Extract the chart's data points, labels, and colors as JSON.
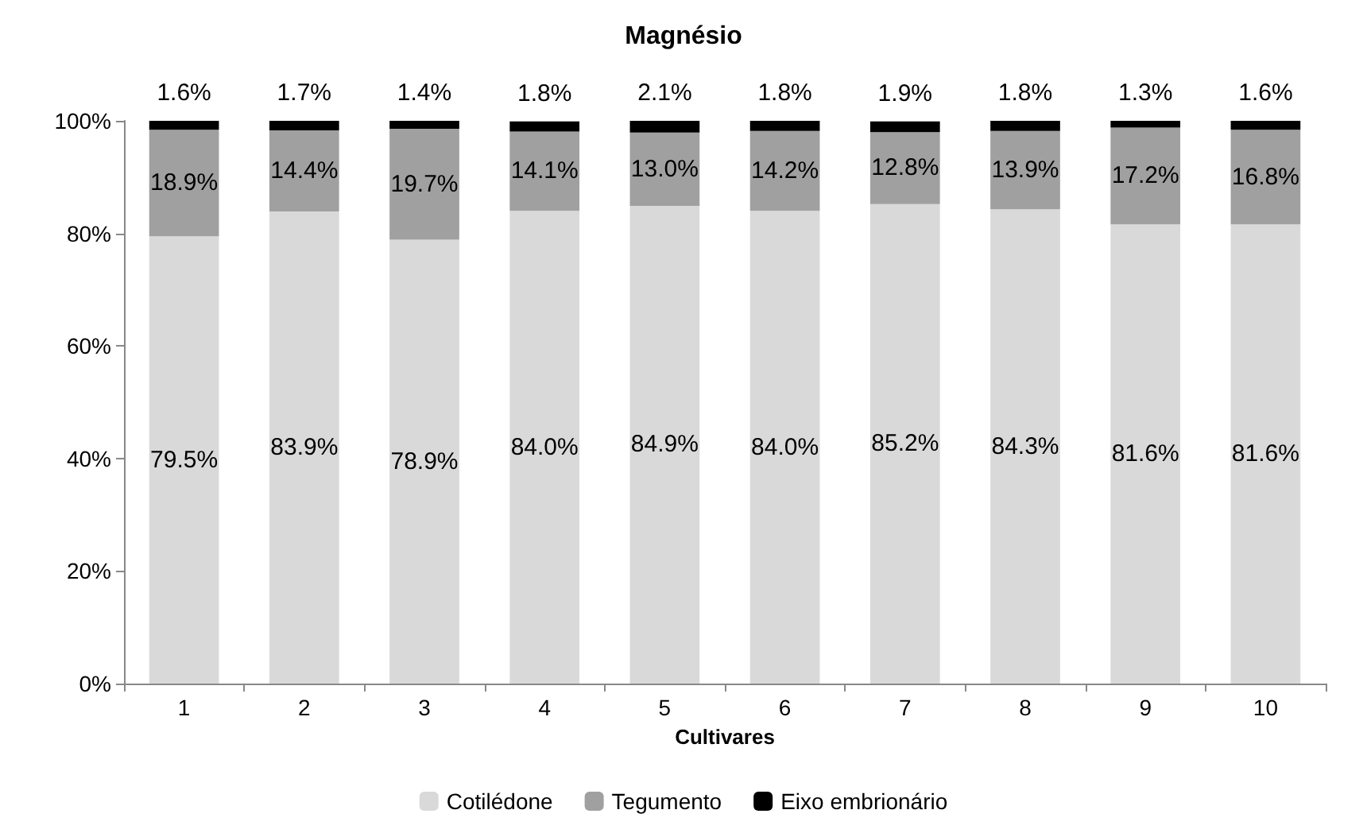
{
  "chart_data": {
    "type": "bar",
    "title": "Magnésio",
    "xlabel": "Cultivares",
    "stacked": true,
    "grid": false,
    "legend": "bottom",
    "categories": [
      "1",
      "2",
      "3",
      "4",
      "5",
      "6",
      "7",
      "8",
      "9",
      "10"
    ],
    "ylim": [
      0,
      100
    ],
    "yticks": [
      {
        "value": 0,
        "label": "0%"
      },
      {
        "value": 20,
        "label": "20%"
      },
      {
        "value": 40,
        "label": "40%"
      },
      {
        "value": 60,
        "label": "60%"
      },
      {
        "value": 80,
        "label": "80%"
      },
      {
        "value": 100,
        "label": "100%"
      }
    ],
    "series": [
      {
        "name": "Cotilédone",
        "color": "#d9d9d9",
        "values": [
          79.5,
          83.9,
          78.9,
          84.0,
          84.9,
          84.0,
          85.2,
          84.3,
          81.6,
          81.6
        ],
        "value_labels": [
          "79.5%",
          "83.9%",
          "78.9%",
          "84.0%",
          "84.9%",
          "84.0%",
          "85.2%",
          "84.3%",
          "81.6%",
          "81.6%"
        ]
      },
      {
        "name": "Tegumento",
        "color": "#a0a0a0",
        "values": [
          18.9,
          14.4,
          19.7,
          14.1,
          13.0,
          14.2,
          12.8,
          13.9,
          17.2,
          16.8
        ],
        "value_labels": [
          "18.9%",
          "14.4%",
          "19.7%",
          "14.1%",
          "13.0%",
          "14.2%",
          "12.8%",
          "13.9%",
          "17.2%",
          "16.8%"
        ]
      },
      {
        "name": "Eixo embrionário",
        "color": "#000000",
        "values": [
          1.6,
          1.7,
          1.4,
          1.8,
          2.1,
          1.8,
          1.9,
          1.8,
          1.3,
          1.6
        ],
        "value_labels": [
          "1.6%",
          "1.7%",
          "1.4%",
          "1.8%",
          "2.1%",
          "1.8%",
          "1.9%",
          "1.8%",
          "1.3%",
          "1.6%"
        ]
      }
    ]
  }
}
